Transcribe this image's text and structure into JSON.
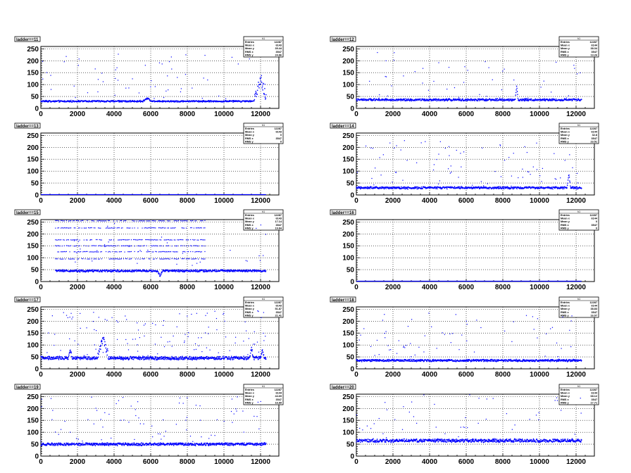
{
  "chart_data": [
    {
      "type": "scatter",
      "title": "ladder==11",
      "stats_header": "h1",
      "stats": [
        {
          "label": "Entries",
          "value": "12287"
        },
        {
          "label": "Mean x",
          "value": "6143"
        },
        {
          "label": "Mean y",
          "value": "39.44"
        },
        {
          "label": "RMS x",
          "value": "3547"
        },
        {
          "label": "RMS y",
          "value": "24.86"
        }
      ],
      "xlim": [
        0,
        13000
      ],
      "ylim": [
        0,
        260
      ],
      "xticks": [
        0,
        2000,
        4000,
        6000,
        8000,
        10000,
        12000
      ],
      "yticks": [
        0,
        50,
        100,
        150,
        200,
        250
      ],
      "x_end": 12300,
      "baseline": 30,
      "noise": 3,
      "bursts": [
        {
          "x": 5800,
          "dy": 12,
          "w": 250
        },
        {
          "x": 12000,
          "dy": 95,
          "w": 350,
          "spread": 22
        }
      ],
      "outlier_density": 0.004
    },
    {
      "type": "scatter",
      "title": "ladder==12",
      "stats_header": "h1",
      "stats": [
        {
          "label": "Entries",
          "value": "12287"
        },
        {
          "label": "Mean x",
          "value": "6144"
        },
        {
          "label": "Mean y",
          "value": "38.34"
        },
        {
          "label": "RMS x",
          "value": "3547"
        },
        {
          "label": "RMS y",
          "value": "13.26"
        }
      ],
      "xlim": [
        0,
        13000
      ],
      "ylim": [
        0,
        260
      ],
      "xticks": [
        0,
        2000,
        4000,
        6000,
        8000,
        10000,
        12000
      ],
      "yticks": [
        0,
        50,
        100,
        150,
        200,
        250
      ],
      "x_end": 12300,
      "baseline": 36,
      "noise": 4,
      "bursts": [
        {
          "x": 8750,
          "dy": 60,
          "w": 80
        }
      ],
      "outlier_density": 0.003
    },
    {
      "type": "scatter",
      "title": "ladder==13",
      "stats_header": "h1",
      "stats": [
        {
          "label": "Entries",
          "value": "12287"
        },
        {
          "label": "Mean x",
          "value": "6143"
        },
        {
          "label": "Mean y",
          "value": "0"
        },
        {
          "label": "RMS x",
          "value": "3547"
        },
        {
          "label": "RMS y",
          "value": "0"
        }
      ],
      "xlim": [
        0,
        13000
      ],
      "ylim": [
        0,
        260
      ],
      "xticks": [
        0,
        2000,
        4000,
        6000,
        8000,
        10000,
        12000
      ],
      "yticks": [
        0,
        50,
        100,
        150,
        200,
        250
      ],
      "x_end": 12300,
      "baseline": 0,
      "noise": 0,
      "bursts": [],
      "outlier_density": 0
    },
    {
      "type": "scatter",
      "title": "ladder==14",
      "stats_header": "h1",
      "stats": [
        {
          "label": "Entries",
          "value": "12287"
        },
        {
          "label": "Mean x",
          "value": "6144"
        },
        {
          "label": "Mean y",
          "value": "32.8"
        },
        {
          "label": "RMS x",
          "value": "3547"
        },
        {
          "label": "RMS y",
          "value": "23.51"
        }
      ],
      "xlim": [
        0,
        13000
      ],
      "ylim": [
        0,
        260
      ],
      "xticks": [
        0,
        2000,
        4000,
        6000,
        8000,
        10000,
        12000
      ],
      "yticks": [
        0,
        50,
        100,
        150,
        200,
        250
      ],
      "x_end": 12300,
      "baseline": 30,
      "noise": 4,
      "bursts": [
        {
          "x": 11600,
          "dy": 60,
          "w": 100
        }
      ],
      "outlier_density": 0.006
    },
    {
      "type": "scatter",
      "title": "ladder==15",
      "stats_header": "h1",
      "stats": [
        {
          "label": "Entries",
          "value": "12287"
        },
        {
          "label": "Mean x",
          "value": "6143"
        },
        {
          "label": "Mean y",
          "value": "17.14"
        },
        {
          "label": "RMS x",
          "value": "3547"
        },
        {
          "label": "RMS y",
          "value": "19.84"
        }
      ],
      "xlim": [
        0,
        13000
      ],
      "ylim": [
        0,
        260
      ],
      "xticks": [
        0,
        2000,
        4000,
        6000,
        8000,
        10000,
        12000
      ],
      "yticks": [
        0,
        50,
        100,
        150,
        200,
        250
      ],
      "x_start": 800,
      "x_end": 12300,
      "baseline": 45,
      "noise": 4,
      "bursts": [
        {
          "x": 6500,
          "dy": -20,
          "w": 150
        }
      ],
      "bands": [
        255,
        225,
        175,
        150,
        125,
        95
      ],
      "outlier_density": 0.002
    },
    {
      "type": "scatter",
      "title": "ladder==16",
      "stats_header": "h1",
      "stats": [
        {
          "label": "Entries",
          "value": "12287"
        },
        {
          "label": "Mean x",
          "value": "6144"
        },
        {
          "label": "Mean y",
          "value": "0"
        },
        {
          "label": "RMS x",
          "value": "3547"
        },
        {
          "label": "RMS y",
          "value": "0"
        }
      ],
      "xlim": [
        0,
        13000
      ],
      "ylim": [
        0,
        260
      ],
      "xticks": [
        0,
        2000,
        4000,
        6000,
        8000,
        10000,
        12000
      ],
      "yticks": [
        0,
        50,
        100,
        150,
        200,
        250
      ],
      "x_end": 12300,
      "baseline": 0,
      "noise": 0,
      "bursts": [],
      "outlier_density": 0
    },
    {
      "type": "scatter",
      "title": "ladder==17",
      "stats_header": "h1",
      "stats": [
        {
          "label": "Entries",
          "value": "12287"
        },
        {
          "label": "Mean x",
          "value": "6143"
        },
        {
          "label": "Mean y",
          "value": "51.87"
        },
        {
          "label": "RMS x",
          "value": "3547"
        },
        {
          "label": "RMS y",
          "value": "21.41"
        }
      ],
      "xlim": [
        0,
        13000
      ],
      "ylim": [
        0,
        260
      ],
      "xticks": [
        0,
        2000,
        4000,
        6000,
        8000,
        10000,
        12000
      ],
      "yticks": [
        0,
        50,
        100,
        150,
        200,
        250
      ],
      "x_end": 12300,
      "baseline": 45,
      "noise": 6,
      "bursts": [
        {
          "x": 3400,
          "dy": 90,
          "w": 300,
          "spread": 15
        },
        {
          "x": 1600,
          "dy": 35,
          "w": 100
        },
        {
          "x": 11500,
          "dy": 45,
          "w": 100
        },
        {
          "x": 12100,
          "dy": 35,
          "w": 100
        }
      ],
      "outlier_density": 0.008
    },
    {
      "type": "scatter",
      "title": "ladder==18",
      "stats_header": "h1",
      "stats": [
        {
          "label": "Entries",
          "value": "12287"
        },
        {
          "label": "Mean x",
          "value": "6144"
        },
        {
          "label": "Mean y",
          "value": "38.83"
        },
        {
          "label": "RMS x",
          "value": "3547"
        },
        {
          "label": "RMS y",
          "value": "16.07"
        }
      ],
      "xlim": [
        0,
        13000
      ],
      "ylim": [
        0,
        260
      ],
      "xticks": [
        0,
        2000,
        4000,
        6000,
        8000,
        10000,
        12000
      ],
      "yticks": [
        0,
        50,
        100,
        150,
        200,
        250
      ],
      "x_end": 12300,
      "baseline": 35,
      "noise": 4,
      "bursts": [],
      "outlier_density": 0.006
    },
    {
      "type": "scatter",
      "title": "ladder==19",
      "stats_header": "h1",
      "stats": [
        {
          "label": "Entries",
          "value": "12287"
        },
        {
          "label": "Mean x",
          "value": "6144"
        },
        {
          "label": "Mean y",
          "value": "44.69"
        },
        {
          "label": "RMS x",
          "value": "3547"
        },
        {
          "label": "RMS y",
          "value": "16.89"
        }
      ],
      "xlim": [
        0,
        13000
      ],
      "ylim": [
        0,
        260
      ],
      "xticks": [
        0,
        2000,
        4000,
        6000,
        8000,
        10000,
        12000
      ],
      "yticks": [
        0,
        50,
        100,
        150,
        200,
        250
      ],
      "x_end": 12300,
      "baseline": 50,
      "noise": 5,
      "bursts": [],
      "outlier_density": 0.006
    },
    {
      "type": "scatter",
      "title": "ladder==20",
      "stats_header": "h1",
      "stats": [
        {
          "label": "Entries",
          "value": "12287"
        },
        {
          "label": "Mean x",
          "value": "6144"
        },
        {
          "label": "Mean y",
          "value": "68.12"
        },
        {
          "label": "RMS x",
          "value": "3547"
        },
        {
          "label": "RMS y",
          "value": "17.71"
        }
      ],
      "xlim": [
        0,
        13000
      ],
      "ylim": [
        0,
        260
      ],
      "xticks": [
        0,
        2000,
        4000,
        6000,
        8000,
        10000,
        12000
      ],
      "yticks": [
        0,
        50,
        100,
        150,
        200,
        250
      ],
      "x_end": 12300,
      "baseline": 65,
      "noise": 6,
      "bursts": [],
      "outlier_density": 0.005
    }
  ],
  "colors": {
    "marker": "#0000ff",
    "axis": "#000000",
    "grid": "#000000",
    "background": "#ffffff"
  }
}
